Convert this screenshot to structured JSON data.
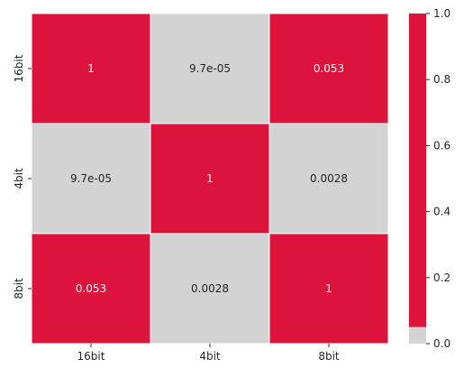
{
  "chart_data": {
    "type": "heatmap",
    "rows": [
      "16bit",
      "4bit",
      "8bit"
    ],
    "columns": [
      "16bit",
      "4bit",
      "8bit"
    ],
    "values": [
      [
        1,
        9.7e-05,
        0.053
      ],
      [
        9.7e-05,
        1,
        0.0028
      ],
      [
        0.053,
        0.0028,
        1
      ]
    ],
    "annotations": [
      [
        "1",
        "9.7e-05",
        "0.053"
      ],
      [
        "9.7e-05",
        "1",
        "0.0028"
      ],
      [
        "0.053",
        "0.0028",
        "1"
      ]
    ],
    "colormap": {
      "threshold": 0.05,
      "below_color": "#d3d3d3",
      "above_color": "#dc143c"
    },
    "colorbar": {
      "vmin": 0.0,
      "vmax": 1.0,
      "ticks": [
        "0.0",
        "0.2",
        "0.4",
        "0.6",
        "0.8",
        "1.0"
      ]
    },
    "text_color_on_red": "#ffffff",
    "text_color_on_grey": "#262626",
    "grid_line_color": "#ffffff",
    "xlabel": "",
    "ylabel": "",
    "title": ""
  }
}
